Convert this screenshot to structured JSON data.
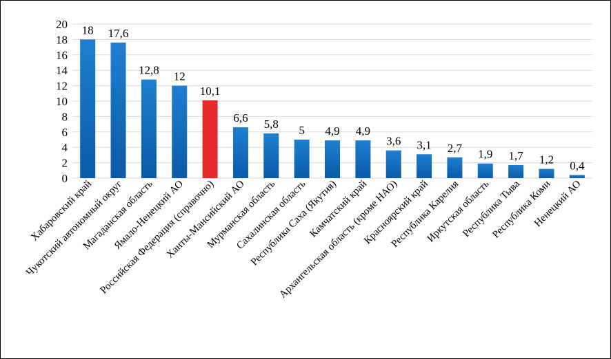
{
  "chart_data": {
    "type": "bar",
    "title": "",
    "xlabel": "",
    "ylabel": "",
    "ylim": [
      0,
      20
    ],
    "yticks": [
      "0",
      "2",
      "4",
      "6",
      "8",
      "10",
      "12",
      "14",
      "16",
      "18",
      "20"
    ],
    "grid": true,
    "categories": [
      "Хабаровский край",
      "Чукотский автономный округ",
      "Магаданская область",
      "Ямало-Ненецкий АО",
      "Российская Федерация (справочно)",
      "Ханты-Мансийский АО",
      "Мурманская область",
      "Сахалинская область",
      "Республика Саха (Якутия)",
      "Камчатский край",
      "Архангельская область (кроме НАО)",
      "Красноярский край",
      "Республика Карелия",
      "Иркутская область",
      "Республика Тыва",
      "Республика Коми",
      "Ненецкий АО"
    ],
    "values": [
      18,
      17.6,
      12.8,
      12,
      10.1,
      6.6,
      5.8,
      5,
      4.9,
      4.9,
      3.6,
      3.1,
      2.7,
      1.9,
      1.7,
      1.2,
      0.4
    ],
    "data_labels": [
      "18",
      "17,6",
      "12,8",
      "12",
      "10,1",
      "6,6",
      "5,8",
      "5",
      "4,9",
      "4,9",
      "3,6",
      "3,1",
      "2,7",
      "1,9",
      "1,7",
      "1,2",
      "0,4"
    ],
    "highlight_index": 4,
    "colors": {
      "bar_top": "#1f7fd0",
      "bar_bottom": "#0a5aa8",
      "highlight": "#e8292b",
      "grid": "#d9d9d9"
    }
  }
}
